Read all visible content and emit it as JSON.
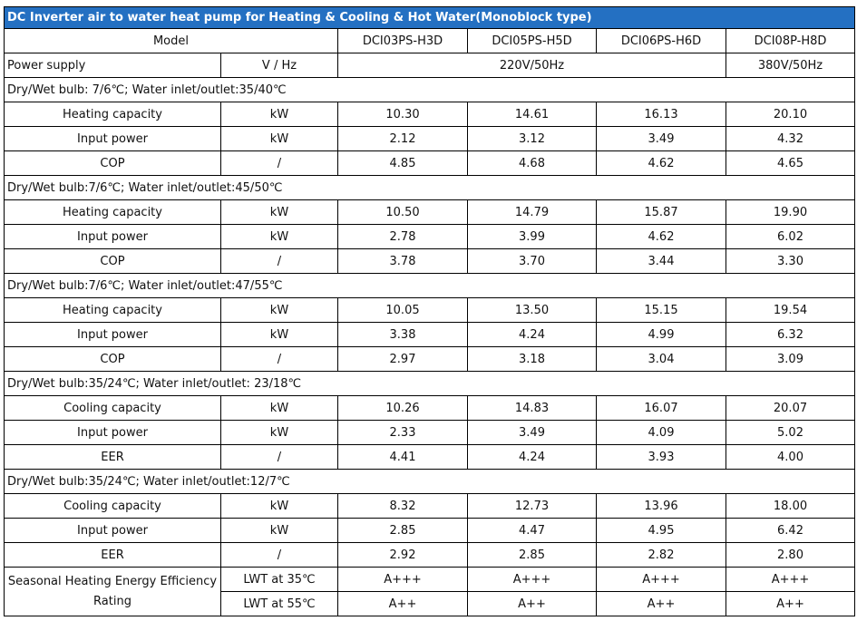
{
  "title": "DC Inverter air to water heat pump for Heating & Cooling & Hot Water(Monoblock type)",
  "header": {
    "label": "Model",
    "models": [
      "DCI03PS-H3D",
      "DCI05PS-H5D",
      "DCI06PS-H6D",
      "DCI08P-H8D"
    ]
  },
  "power_supply": {
    "label": "Power supply",
    "unit": "V / Hz",
    "values": [
      "220V/50Hz",
      "380V/50Hz"
    ]
  },
  "sections": [
    {
      "condition": "Dry/Wet bulb: 7/6℃; Water inlet/outlet:35/40℃",
      "rows": [
        {
          "label": "Heating capacity",
          "unit": "kW",
          "values": [
            "10.30",
            "14.61",
            "16.13",
            "20.10"
          ]
        },
        {
          "label": "Input power",
          "unit": "kW",
          "values": [
            "2.12",
            "3.12",
            "3.49",
            "4.32"
          ]
        },
        {
          "label": "COP",
          "unit": "/",
          "values": [
            "4.85",
            "4.68",
            "4.62",
            "4.65"
          ]
        }
      ]
    },
    {
      "condition": "Dry/Wet bulb:7/6℃; Water inlet/outlet:45/50℃",
      "rows": [
        {
          "label": "Heating capacity",
          "unit": "kW",
          "values": [
            "10.50",
            "14.79",
            "15.87",
            "19.90"
          ]
        },
        {
          "label": "Input power",
          "unit": "kW",
          "values": [
            "2.78",
            "3.99",
            "4.62",
            "6.02"
          ]
        },
        {
          "label": "COP",
          "unit": "/",
          "values": [
            "3.78",
            "3.70",
            "3.44",
            "3.30"
          ]
        }
      ]
    },
    {
      "condition": "Dry/Wet bulb:7/6℃; Water inlet/outlet:47/55℃",
      "rows": [
        {
          "label": "Heating capacity",
          "unit": "kW",
          "values": [
            "10.05",
            "13.50",
            "15.15",
            "19.54"
          ]
        },
        {
          "label": "Input power",
          "unit": "kW",
          "values": [
            "3.38",
            "4.24",
            "4.99",
            "6.32"
          ]
        },
        {
          "label": "COP",
          "unit": "/",
          "values": [
            "2.97",
            "3.18",
            "3.04",
            "3.09"
          ]
        }
      ]
    },
    {
      "condition": "Dry/Wet bulb:35/24℃; Water inlet/outlet: 23/18℃",
      "rows": [
        {
          "label": "Cooling capacity",
          "unit": "kW",
          "values": [
            "10.26",
            "14.83",
            "16.07",
            "20.07"
          ]
        },
        {
          "label": "Input power",
          "unit": "kW",
          "values": [
            "2.33",
            "3.49",
            "4.09",
            "5.02"
          ]
        },
        {
          "label": "EER",
          "unit": "/",
          "values": [
            "4.41",
            "4.24",
            "3.93",
            "4.00"
          ]
        }
      ]
    },
    {
      "condition": "Dry/Wet bulb:35/24℃; Water inlet/outlet:12/7℃",
      "rows": [
        {
          "label": "Cooling capacity",
          "unit": "kW",
          "values": [
            "8.32",
            "12.73",
            "13.96",
            "18.00"
          ]
        },
        {
          "label": "Input power",
          "unit": "kW",
          "values": [
            "2.85",
            "4.47",
            "4.95",
            "6.42"
          ]
        },
        {
          "label": "EER",
          "unit": "/",
          "values": [
            "2.92",
            "2.85",
            "2.82",
            "2.80"
          ]
        }
      ]
    }
  ],
  "seasonal": {
    "label": "Seasonal Heating Energy Efficiency Rating",
    "rows": [
      {
        "condition": "LWT at 35℃",
        "values": [
          "A+++",
          "A+++",
          "A+++",
          "A+++"
        ]
      },
      {
        "condition": "LWT at 55℃",
        "values": [
          "A++",
          "A++",
          "A++",
          "A++"
        ]
      }
    ]
  }
}
